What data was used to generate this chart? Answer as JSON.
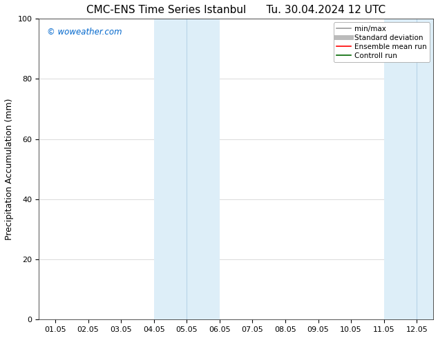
{
  "title_left": "CMC-ENS Time Series Istanbul",
  "title_right": "Tu. 30.04.2024 12 UTC",
  "ylabel": "Precipitation Accumulation (mm)",
  "ylim": [
    0,
    100
  ],
  "yticks": [
    0,
    20,
    40,
    60,
    80,
    100
  ],
  "x_labels": [
    "01.05",
    "02.05",
    "03.05",
    "04.05",
    "05.05",
    "06.05",
    "07.05",
    "08.05",
    "09.05",
    "10.05",
    "11.05",
    "12.05"
  ],
  "x_values": [
    0,
    1,
    2,
    3,
    4,
    5,
    6,
    7,
    8,
    9,
    10,
    11
  ],
  "xlim": [
    -0.5,
    11.5
  ],
  "shaded_regions": [
    {
      "x_start": 3.0,
      "x_end": 3.5,
      "color": "#ddeef8"
    },
    {
      "x_start": 3.5,
      "x_end": 4.5,
      "color": "#ddeef8"
    },
    {
      "x_start": 4.5,
      "x_end": 5.0,
      "color": "#ddeef8"
    },
    {
      "x_start": 10.0,
      "x_end": 10.5,
      "color": "#ddeef8"
    },
    {
      "x_start": 10.5,
      "x_end": 11.5,
      "color": "#ddeef8"
    }
  ],
  "divider_lines": [
    3.5,
    10.5
  ],
  "watermark": "© woweather.com",
  "watermark_color": "#0066cc",
  "background_color": "#ffffff",
  "plot_bg_color": "#ffffff",
  "legend_items": [
    {
      "label": "min/max",
      "color": "#999999",
      "linestyle": "-",
      "linewidth": 1.2
    },
    {
      "label": "Standard deviation",
      "color": "#bbbbbb",
      "linestyle": "-",
      "linewidth": 5
    },
    {
      "label": "Ensemble mean run",
      "color": "#ff0000",
      "linestyle": "-",
      "linewidth": 1.2
    },
    {
      "label": "Controll run",
      "color": "#006600",
      "linestyle": "-",
      "linewidth": 1.2
    }
  ],
  "title_fontsize": 11,
  "axis_fontsize": 9,
  "tick_fontsize": 8,
  "legend_fontsize": 7.5
}
